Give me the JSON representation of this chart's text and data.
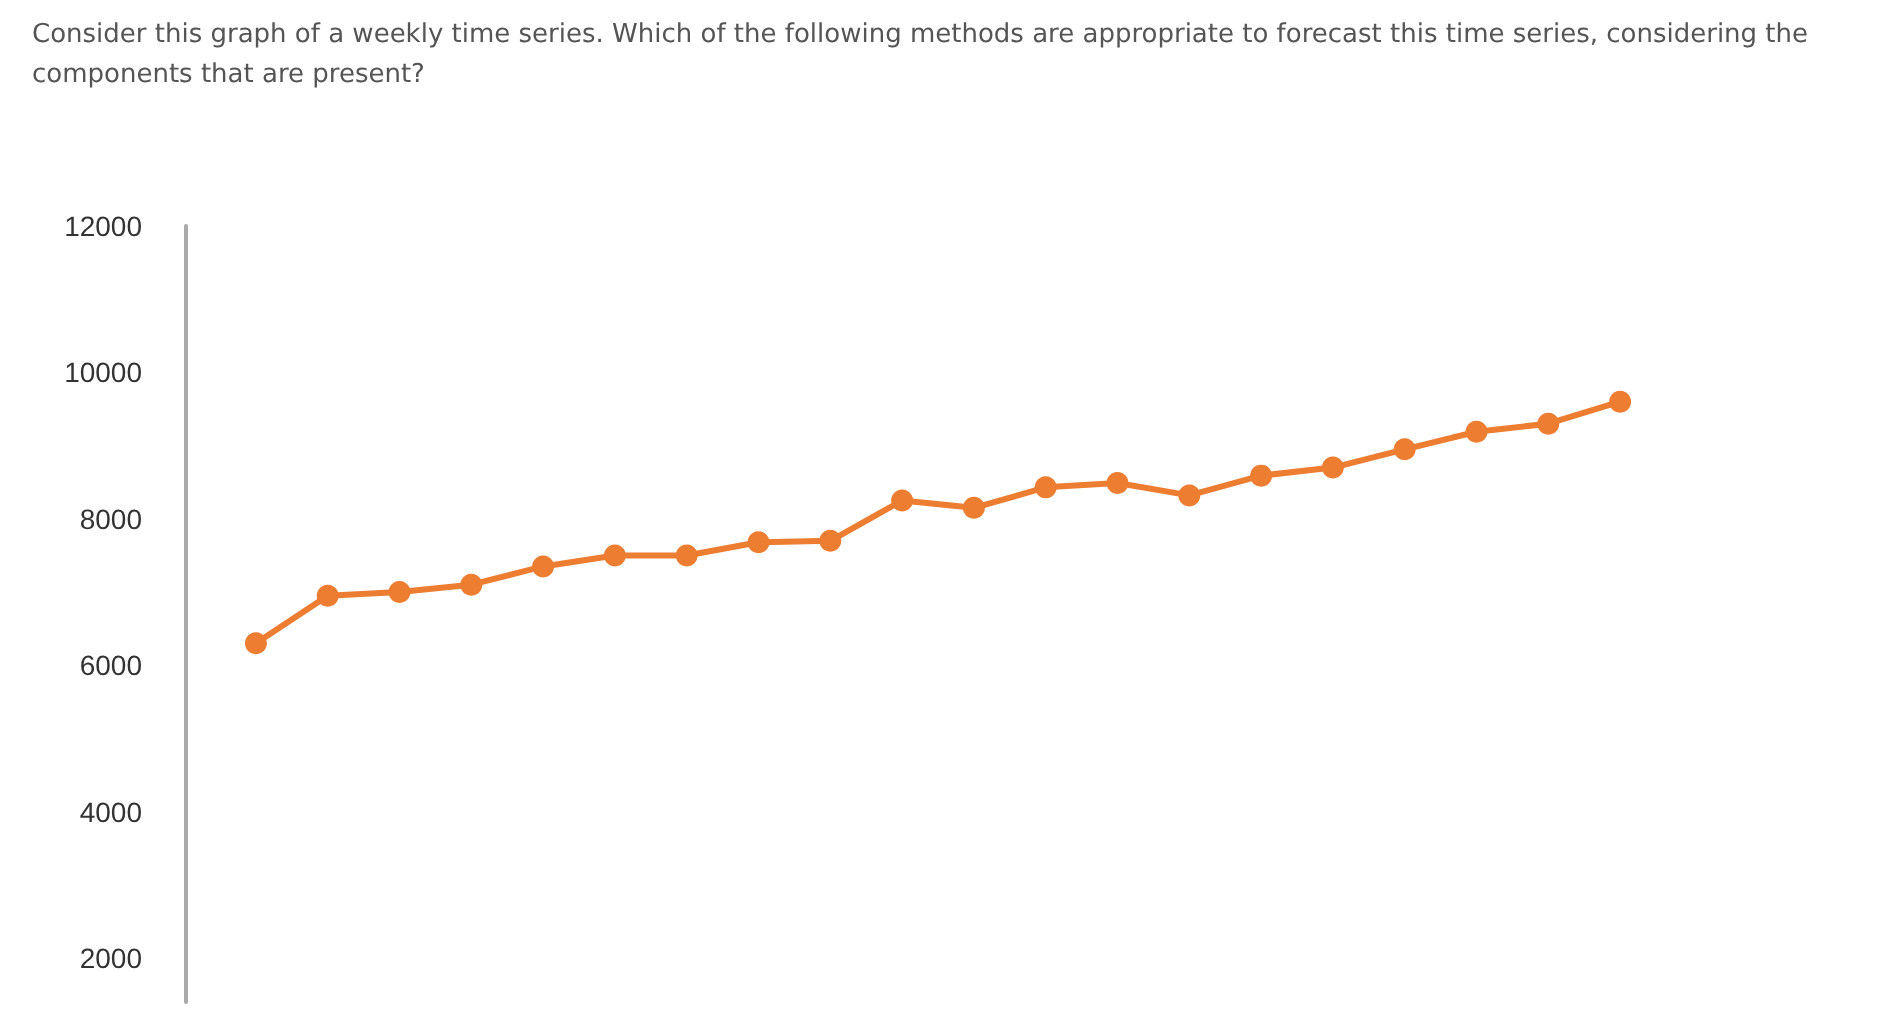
{
  "chart_data": {
    "type": "line",
    "title": "Consider this graph of a weekly time series. Which of the following methods are appropriate to forecast this time series, considering the components that are present?",
    "categories": [
      null,
      null,
      null,
      null,
      null,
      null,
      null,
      null,
      null,
      null,
      null,
      null,
      null,
      null,
      null,
      null,
      null,
      null,
      null,
      null
    ],
    "series": [
      {
        "color": "#ed7d31",
        "values": [
          6300,
          6950,
          7000,
          7100,
          7350,
          7500,
          7500,
          7680,
          7700,
          8250,
          8150,
          8430,
          8490,
          8320,
          8590,
          8700,
          8950,
          9190,
          9300,
          9600
        ]
      }
    ],
    "ylim": [
      1400,
      12000
    ],
    "yticks": [
      2000,
      4000,
      6000,
      8000,
      10000,
      12000
    ],
    "grid": false,
    "marker": "circle",
    "line_style": "solid"
  }
}
